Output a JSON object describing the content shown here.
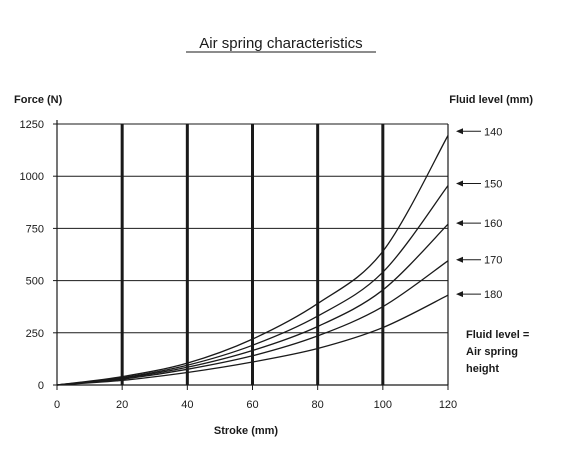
{
  "chart_data": {
    "type": "line",
    "title": "Air spring characteristics",
    "xlabel": "Stroke (mm)",
    "ylabel": "Force (N)",
    "legend_title": "Fluid level (mm)",
    "note": [
      "Fluid level =",
      "Air spring",
      "height"
    ],
    "xlim": [
      0,
      120
    ],
    "ylim": [
      0,
      1250
    ],
    "x_ticks": [
      0,
      20,
      40,
      60,
      80,
      100,
      120
    ],
    "y_ticks": [
      0,
      250,
      500,
      750,
      1000,
      1250
    ],
    "grid": true,
    "x": [
      0,
      20,
      40,
      60,
      80,
      100,
      120
    ],
    "series": [
      {
        "name": "140",
        "values": [
          0,
          40,
          105,
          220,
          390,
          640,
          1195
        ]
      },
      {
        "name": "150",
        "values": [
          0,
          35,
          95,
          190,
          330,
          540,
          955
        ]
      },
      {
        "name": "160",
        "values": [
          0,
          32,
          85,
          165,
          280,
          455,
          770
        ]
      },
      {
        "name": "170",
        "values": [
          0,
          28,
          75,
          140,
          235,
          375,
          595
        ]
      },
      {
        "name": "180",
        "values": [
          0,
          22,
          60,
          110,
          175,
          275,
          430
        ]
      }
    ],
    "label_values": [
      1215,
      965,
      775,
      600,
      435
    ]
  }
}
